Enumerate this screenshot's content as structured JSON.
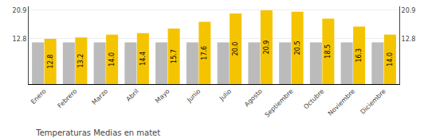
{
  "chart_data": {
    "type": "bar",
    "title": "Temperaturas Medias en matet",
    "categories": [
      "Enero",
      "Febrero",
      "Marzo",
      "Abril",
      "Mayo",
      "Junio",
      "Julio",
      "Agosto",
      "Septiembre",
      "Octubre",
      "Noviembre",
      "Diciembre"
    ],
    "series": [
      {
        "color": "#BBBBBB",
        "values": [
          11.8,
          11.8,
          11.8,
          11.8,
          11.8,
          11.8,
          11.8,
          11.8,
          11.8,
          11.8,
          11.8,
          11.8
        ]
      },
      {
        "color": "#F5C400",
        "values": [
          12.8,
          13.2,
          14.0,
          14.4,
          15.7,
          17.6,
          20.0,
          20.9,
          20.5,
          18.5,
          16.3,
          14.0
        ],
        "value_labels": [
          "12.8",
          "13.2",
          "14.0",
          "14.4",
          "15.7",
          "17.6",
          "20.0",
          "20.9",
          "20.5",
          "18.5",
          "16.3",
          "14.0"
        ],
        "data_labels": true
      }
    ],
    "ylim": [
      0,
      22.0
    ],
    "yticks": [
      12.8,
      20.9
    ],
    "y2lim": [
      0,
      22.0
    ],
    "y2ticks": [
      12.8,
      20.9
    ],
    "grid": true
  }
}
